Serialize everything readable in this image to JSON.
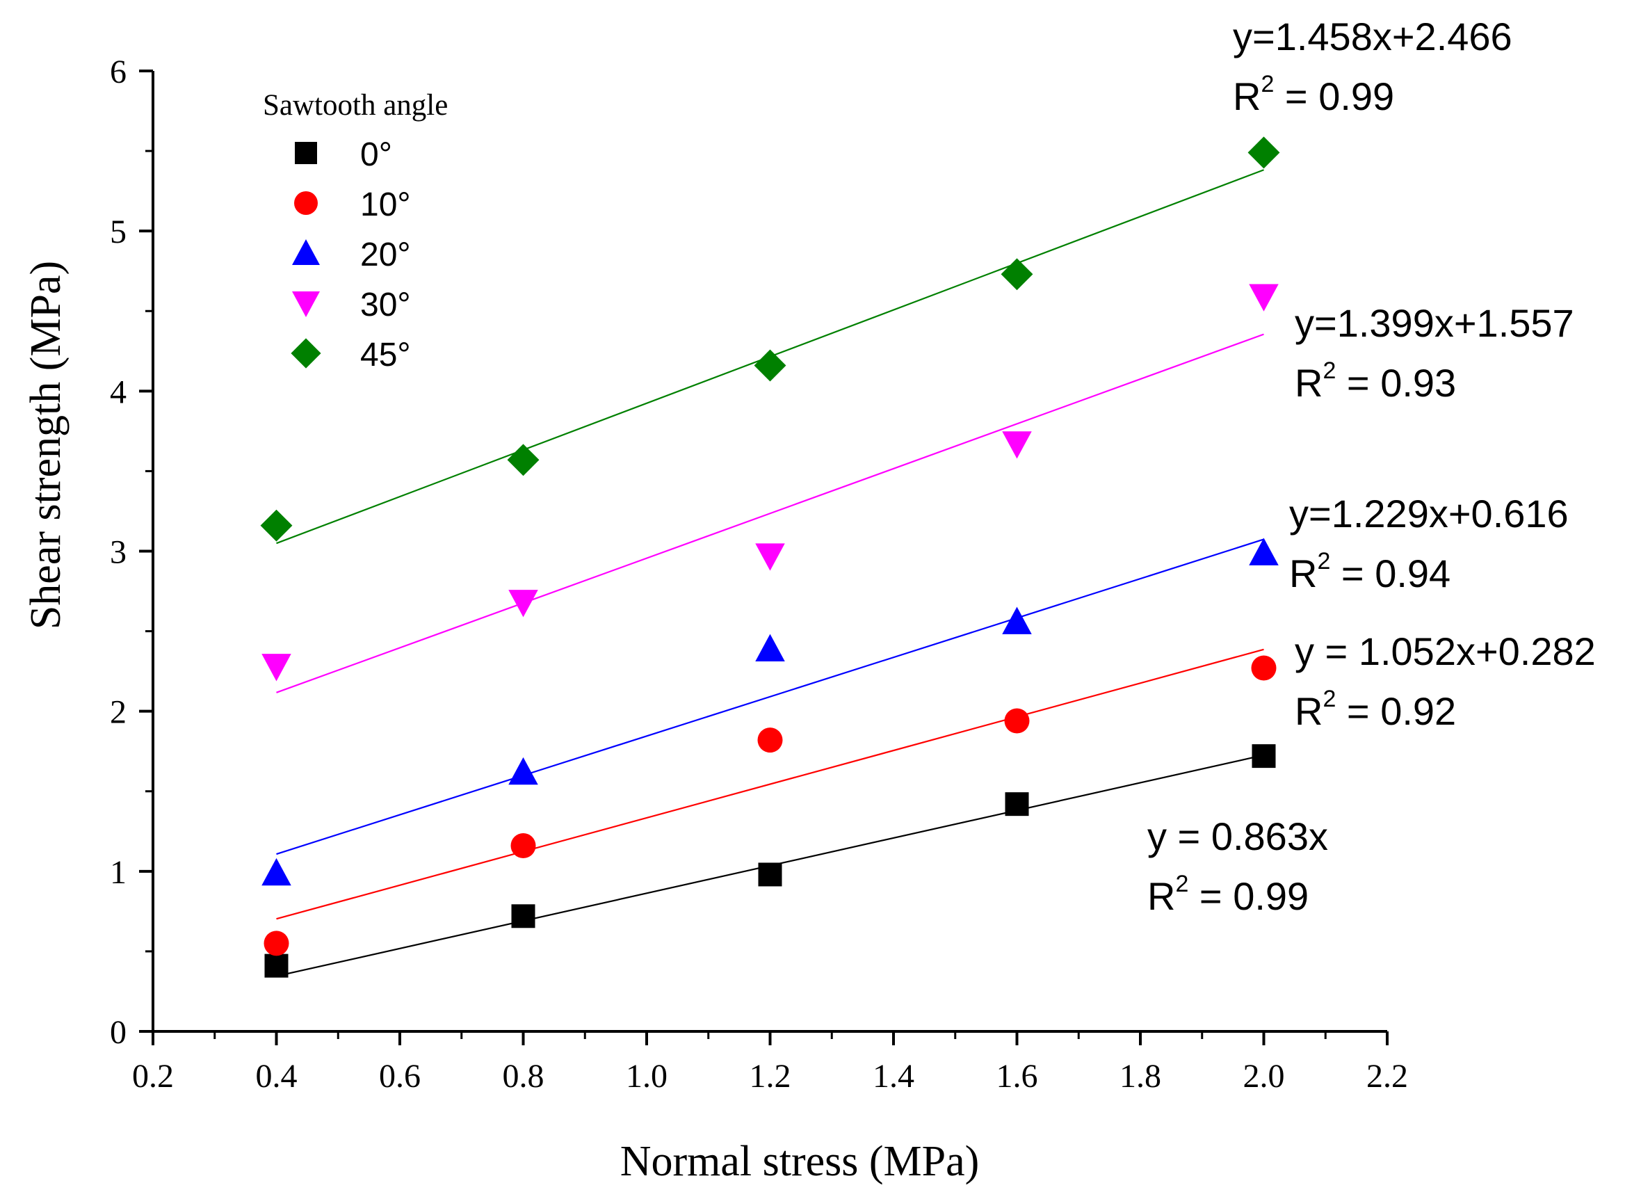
{
  "chart_data": {
    "type": "scatter",
    "xlabel": "Normal stress (MPa)",
    "ylabel": "Shear strength (MPa)",
    "xlim": [
      0.2,
      2.2
    ],
    "ylim": [
      0,
      6
    ],
    "x_ticks": [
      "0.2",
      "0.4",
      "0.6",
      "0.8",
      "1.0",
      "1.2",
      "1.4",
      "1.6",
      "1.8",
      "2.0",
      "2.2"
    ],
    "y_ticks": [
      "0",
      "1",
      "2",
      "3",
      "4",
      "5",
      "6"
    ],
    "legend_title": "Sawtooth angle",
    "legend_position": "top-left",
    "grid": false,
    "x": [
      0.4,
      0.8,
      1.2,
      1.6,
      2.0
    ],
    "series": [
      {
        "name": "0°",
        "marker": "square",
        "color": "#000000",
        "values": [
          0.41,
          0.72,
          0.98,
          1.42,
          1.72
        ],
        "fit": {
          "slope": 0.863,
          "intercept": 0.0,
          "equation": "y = 0.863x",
          "r2_prefix": "R",
          "r2_value": " = 0.99"
        }
      },
      {
        "name": "10°",
        "marker": "circle",
        "color": "#ff0000",
        "values": [
          0.55,
          1.16,
          1.82,
          1.94,
          2.27
        ],
        "fit": {
          "slope": 1.052,
          "intercept": 0.282,
          "equation": "y = 1.052x+0.282",
          "r2_prefix": "R",
          "r2_value": " = 0.92"
        }
      },
      {
        "name": "20°",
        "marker": "triangle-up",
        "color": "#0000ff",
        "values": [
          0.99,
          1.62,
          2.39,
          2.56,
          2.99
        ],
        "fit": {
          "slope": 1.229,
          "intercept": 0.616,
          "equation": "y=1.229x+0.616",
          "r2_prefix": "R",
          "r2_value": " = 0.94"
        }
      },
      {
        "name": "30°",
        "marker": "triangle-down",
        "color": "#ff00ff",
        "values": [
          2.28,
          2.68,
          2.97,
          3.67,
          4.59
        ],
        "fit": {
          "slope": 1.399,
          "intercept": 1.557,
          "equation": "y=1.399x+1.557",
          "r2_prefix": "R",
          "r2_value": " = 0.93"
        }
      },
      {
        "name": "45°",
        "marker": "diamond",
        "color": "#008000",
        "values": [
          3.16,
          3.57,
          4.16,
          4.73,
          5.49
        ],
        "fit": {
          "slope": 1.458,
          "intercept": 2.466,
          "equation": "y=1.458x+2.466",
          "r2_prefix": "R",
          "r2_value": " = 0.99"
        }
      }
    ]
  }
}
